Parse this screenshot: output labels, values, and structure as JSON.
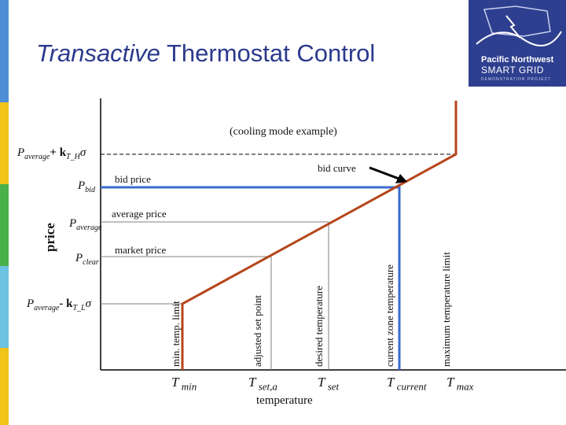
{
  "header": {
    "title_italic": "Transactive",
    "title_rest": " Thermostat Control",
    "logo_line1": "Pacific Northwest",
    "logo_line2": "SMART GRID",
    "logo_line3": "DEMONSTRATION PROJECT"
  },
  "colors": {
    "strips": [
      "#4c8fd6",
      "#f0c419",
      "#4ab04a",
      "#6cc3e0",
      "#f0c419"
    ],
    "curve": "#b5451b",
    "bid_line": "#3a6bd0",
    "axis": "#000000",
    "guide": "#808080"
  },
  "diagram": {
    "subtitle": "(cooling mode example)",
    "y_axis_label": "price",
    "x_axis_label": "temperature",
    "y_marks": {
      "p_high": {
        "main": "P",
        "sub": "average",
        "rest": "+ k",
        "sub2": "T_H",
        "tail": "σ"
      },
      "p_bid": {
        "main": "P",
        "sub": "bid"
      },
      "p_average": {
        "main": "P",
        "sub": "average"
      },
      "p_clear": {
        "main": "P",
        "sub": "clear"
      },
      "p_low": {
        "main": "P",
        "sub": "average",
        "rest": "- k",
        "sub2": "T_L",
        "tail": "σ"
      }
    },
    "x_marks": {
      "t_min": {
        "main": "T",
        "sub": " min"
      },
      "t_set_a": {
        "main": "T",
        "sub": " set,a"
      },
      "t_set": {
        "main": "T",
        "sub": " set"
      },
      "t_current": {
        "main": "T",
        "sub": " current"
      },
      "t_max": {
        "main": "T",
        "sub": " max"
      }
    },
    "price_labels": {
      "bid_price": "bid price",
      "average_price": "average price",
      "market_price": "market price",
      "bid_curve": "bid curve"
    },
    "vertical_labels": {
      "min_temp_limit": "min. temp. limit",
      "adjusted_set_point": "adjusted set point",
      "desired_temperature": "desired temperature",
      "current_zone_temperature": "current zone temperature",
      "maximum_temperature_limit": "maximum temperature limit"
    }
  }
}
